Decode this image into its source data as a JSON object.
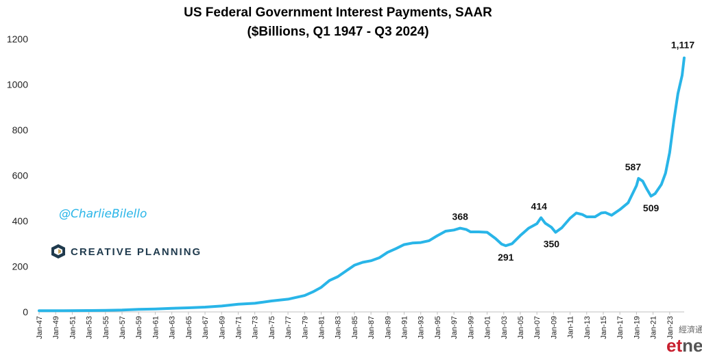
{
  "chart_data": {
    "type": "line",
    "title": "US Federal Government Interest Payments, SAAR",
    "subtitle": "($Billions, Q1 1947 - Q3 2024)",
    "ylim": [
      0,
      1200
    ],
    "yticks": [
      0,
      200,
      400,
      600,
      800,
      1000,
      1200
    ],
    "xlim": [
      1947.0,
      2024.75
    ],
    "grid": false,
    "line_color": "#29b5e8",
    "x_tick_labels": [
      "Jan-47",
      "Jan-49",
      "Jan-51",
      "Jan-53",
      "Jan-55",
      "Jan-57",
      "Jan-59",
      "Jan-61",
      "Jan-63",
      "Jan-65",
      "Jan-67",
      "Jan-69",
      "Jan-71",
      "Jan-73",
      "Jan-75",
      "Jan-77",
      "Jan-79",
      "Jan-81",
      "Jan-83",
      "Jan-85",
      "Jan-87",
      "Jan-89",
      "Jan-91",
      "Jan-93",
      "Jan-95",
      "Jan-97",
      "Jan-99",
      "Jan-01",
      "Jan-03",
      "Jan-05",
      "Jan-07",
      "Jan-09",
      "Jan-11",
      "Jan-13",
      "Jan-15",
      "Jan-17",
      "Jan-19",
      "Jan-21",
      "Jan-23"
    ],
    "series": [
      {
        "x": [
          1947.0,
          1950.0,
          1953.0,
          1955.0,
          1957.0,
          1959.0,
          1961.0,
          1963.0,
          1965.0,
          1967.0,
          1969.0,
          1971.0,
          1973.0,
          1975.0,
          1977.0,
          1979.0,
          1980.0,
          1981.0,
          1982.0,
          1983.0,
          1984.0,
          1985.0,
          1986.0,
          1987.0,
          1988.0,
          1989.0,
          1990.0,
          1991.0,
          1992.0,
          1993.0,
          1994.0,
          1995.0,
          1996.0,
          1997.0,
          1997.75,
          1998.5,
          1999.0,
          2000.0,
          2001.0,
          2002.0,
          2002.75,
          2003.25,
          2004.0,
          2005.0,
          2006.0,
          2007.0,
          2007.5,
          2008.0,
          2008.75,
          2009.25,
          2010.0,
          2011.0,
          2011.75,
          2012.5,
          2013.0,
          2014.0,
          2014.75,
          2015.25,
          2016.0,
          2017.0,
          2018.0,
          2019.0,
          2019.25,
          2019.75,
          2020.25,
          2020.75,
          2021.25,
          2022.0,
          2022.5,
          2023.0,
          2023.5,
          2024.0,
          2024.5,
          2024.75
        ],
        "y": [
          5,
          5,
          6,
          7,
          8,
          11,
          13,
          16,
          18,
          21,
          26,
          34,
          38,
          48,
          56,
          72,
          88,
          108,
          138,
          155,
          180,
          205,
          218,
          225,
          238,
          262,
          278,
          296,
          303,
          305,
          313,
          335,
          355,
          360,
          368,
          362,
          352,
          352,
          350,
          323,
          298,
          291,
          300,
          336,
          368,
          388,
          414,
          390,
          372,
          350,
          370,
          412,
          435,
          428,
          418,
          418,
          435,
          437,
          425,
          450,
          480,
          555,
          587,
          575,
          540,
          509,
          520,
          560,
          610,
          700,
          840,
          960,
          1040,
          1117
        ]
      }
    ],
    "annotations": [
      {
        "text": "368",
        "x": 1997.75,
        "y": 368
      },
      {
        "text": "291",
        "x": 2003.25,
        "y": 291
      },
      {
        "text": "414",
        "x": 2007.5,
        "y": 414
      },
      {
        "text": "350",
        "x": 2009.25,
        "y": 350
      },
      {
        "text": "587",
        "x": 2019.25,
        "y": 587
      },
      {
        "text": "509",
        "x": 2020.75,
        "y": 509
      },
      {
        "text": "1,117",
        "x": 2024.75,
        "y": 1117
      }
    ]
  },
  "overlay": {
    "handle": "@CharlieBilello",
    "brand": "CREATIVE PLANNING",
    "watermark_cjk": "經濟通",
    "watermark_et": "etnet"
  }
}
